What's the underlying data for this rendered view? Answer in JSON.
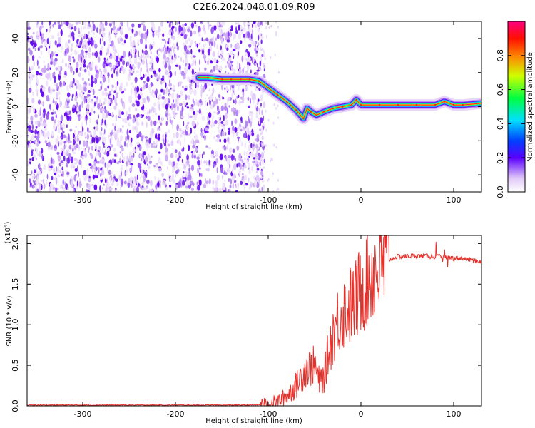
{
  "title": "C2E6.2024.048.01.09.R09",
  "chart_data": [
    {
      "type": "heatmap",
      "name": "spectrogram",
      "xlabel": "Height of straight line (km)",
      "ylabel": "Frequency (Hz)",
      "xlim": [
        -360,
        130
      ],
      "ylim": [
        -50,
        50
      ],
      "xticks": [
        -300,
        -200,
        -100,
        0,
        100
      ],
      "yticks": [
        -40,
        -20,
        0,
        20,
        40
      ],
      "noise_region_x": [
        -360,
        -110
      ],
      "trace": {
        "x": [
          -175,
          -165,
          -150,
          -140,
          -130,
          -120,
          -110,
          -100,
          -90,
          -80,
          -70,
          -62,
          -58,
          -54,
          -48,
          -40,
          -30,
          -20,
          -10,
          -5,
          0,
          20,
          40,
          60,
          80,
          90,
          100,
          110,
          130
        ],
        "y": [
          17,
          17,
          16,
          16,
          16,
          16,
          15,
          11,
          7,
          3,
          -2,
          -7,
          -1,
          -3,
          -5,
          -3,
          -1,
          0,
          1,
          4,
          1,
          1,
          1,
          1,
          1,
          3,
          1,
          1,
          2
        ]
      },
      "colorbar": {
        "label": "Normalized spectral amplitude",
        "ticks": [
          "0.0",
          "0.2",
          "0.4",
          "0.6",
          "0.8"
        ],
        "range": [
          0,
          1
        ]
      }
    },
    {
      "type": "line",
      "name": "snr",
      "xlabel": "Height of straight line (km)",
      "ylabel": "SNR (10 * v/v)",
      "multiplier_label": "(x10",
      "multiplier_exp": "4",
      "xlim": [
        -360,
        130
      ],
      "ylim": [
        0,
        2.1
      ],
      "xticks": [
        -300,
        -200,
        -100,
        0,
        100
      ],
      "yticks": [
        "0.0",
        "0.5",
        "1.0",
        "1.5",
        "2.0"
      ],
      "series": [
        {
          "color": "#e8302a",
          "x": [
            -360,
            -300,
            -200,
            -120,
            -100,
            -90,
            -80,
            -70,
            -60,
            -50,
            -45,
            -40,
            -35,
            -30,
            -25,
            -20,
            -15,
            -10,
            -5,
            0,
            10,
            20,
            30,
            40,
            60,
            80,
            90,
            100,
            110,
            120,
            130
          ],
          "y": [
            0.01,
            0.01,
            0.01,
            0.01,
            0.02,
            0.05,
            0.12,
            0.25,
            0.45,
            0.5,
            0.3,
            0.35,
            0.65,
            0.9,
            1.05,
            1.15,
            1.2,
            1.25,
            1.3,
            1.45,
            1.6,
            1.72,
            1.8,
            1.84,
            1.85,
            1.84,
            1.83,
            1.82,
            1.82,
            1.79,
            1.78
          ]
        }
      ]
    }
  ]
}
